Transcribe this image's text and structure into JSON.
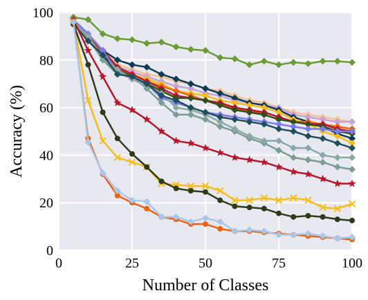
{
  "chart_data": {
    "type": "line",
    "xlabel": "Number of Classes",
    "ylabel": "Accuracy (%)",
    "xlim": [
      0,
      100
    ],
    "ylim": [
      0,
      100
    ],
    "xticks": [
      0,
      25,
      50,
      75,
      100
    ],
    "yticks": [
      0,
      20,
      40,
      60,
      80,
      100
    ],
    "grid": true,
    "plot_background": "#e8e8f0",
    "grid_color": "#ffffff",
    "x": [
      5,
      10,
      15,
      20,
      25,
      30,
      35,
      40,
      45,
      50,
      55,
      60,
      65,
      70,
      75,
      80,
      85,
      90,
      95,
      100
    ],
    "series": [
      {
        "color": "#6b9b37",
        "marker": "diamond",
        "values": [
          98,
          97,
          91,
          89,
          88.5,
          87,
          87.5,
          85.5,
          84.5,
          84,
          81,
          80.5,
          78,
          79.5,
          78,
          79,
          78.5,
          79.5,
          79.5,
          79
        ]
      },
      {
        "color": "#f4c28e",
        "marker": "diamond",
        "values": [
          97,
          90,
          84,
          78,
          76,
          74,
          73,
          71,
          70,
          68,
          67,
          65,
          63,
          62,
          60,
          58,
          57,
          56,
          55,
          54
        ]
      },
      {
        "color": "#c4a3d9",
        "marker": "diamond",
        "values": [
          97,
          90,
          83,
          77,
          75,
          73,
          71,
          69,
          68,
          66,
          65,
          63,
          62,
          61,
          60,
          57,
          56,
          55,
          54,
          54
        ]
      },
      {
        "color": "#0d3b57",
        "marker": "diamond",
        "values": [
          96,
          89,
          84,
          80,
          78,
          77,
          74,
          72,
          70,
          68,
          66,
          64,
          62,
          61,
          59,
          56,
          54,
          52,
          49,
          47
        ]
      },
      {
        "color": "#f5be1a",
        "marker": "diamond",
        "values": [
          96,
          88,
          82,
          76,
          74,
          72,
          70,
          67,
          66,
          65,
          63,
          62,
          61,
          60,
          58,
          55,
          53,
          50,
          48,
          45
        ]
      },
      {
        "color": "#ec6313",
        "marker": "diamond",
        "values": [
          96,
          89,
          83,
          76,
          74,
          71,
          69,
          67,
          65,
          63,
          61,
          60,
          58,
          58,
          56,
          54,
          54,
          53,
          52,
          51
        ]
      },
      {
        "color": "#b5182d",
        "marker": "diamond",
        "values": [
          97,
          90,
          84,
          77,
          74,
          71,
          68,
          65,
          64,
          63,
          62,
          60,
          59,
          58,
          56,
          54,
          53,
          53,
          51,
          50
        ]
      },
      {
        "color": "#344e1b",
        "marker": "diamond",
        "values": [
          96,
          89,
          82,
          76,
          73,
          70,
          67,
          64,
          64,
          63,
          61,
          59,
          58,
          57,
          55,
          54,
          53,
          52,
          50,
          49
        ]
      },
      {
        "color": "#7a7cee",
        "marker": "diamond",
        "values": [
          97,
          91,
          84,
          75,
          72,
          70,
          64,
          62,
          60,
          58,
          57,
          56,
          55,
          54,
          53,
          52,
          51,
          51,
          50,
          50
        ]
      },
      {
        "color": "#7e9c96",
        "marker": "diamond",
        "values": [
          96,
          89,
          80,
          74,
          73,
          68,
          62,
          57,
          57,
          55,
          52,
          50,
          47,
          45,
          42,
          39,
          38,
          37,
          35,
          34
        ]
      },
      {
        "color": "#8ba9a3",
        "marker": "diamond",
        "values": [
          96,
          90,
          81,
          76,
          72,
          69,
          66,
          60,
          59,
          57,
          54,
          51,
          48,
          46,
          46,
          43,
          43,
          40,
          39,
          39
        ]
      },
      {
        "color": "#1e4f5b",
        "marker": "diamond",
        "values": [
          95,
          88,
          82,
          74,
          73,
          70,
          65,
          63,
          60,
          58,
          56,
          55,
          54,
          53,
          51,
          50,
          48,
          47,
          45,
          43
        ]
      },
      {
        "color": "#b5182d",
        "marker": "star",
        "values": [
          97,
          84,
          73,
          62,
          59,
          55,
          50,
          46,
          45,
          43,
          41,
          39,
          38,
          37,
          35,
          33,
          32,
          30,
          28,
          28
        ]
      },
      {
        "color": "#f5be1a",
        "marker": "x",
        "values": [
          96,
          63,
          46,
          39,
          37,
          35,
          28,
          27.5,
          27,
          27,
          25,
          21,
          21,
          22,
          21,
          22,
          21,
          18,
          17.5,
          19.5
        ]
      },
      {
        "color": "#2d3a19",
        "marker": "circle",
        "values": [
          95,
          78,
          58,
          47,
          40.5,
          35,
          29,
          26,
          25,
          24.5,
          21,
          18.5,
          18,
          17.5,
          15.5,
          14,
          14.5,
          14,
          13,
          12.5
        ]
      },
      {
        "color": "#ec6313",
        "marker": "circle",
        "values": [
          96,
          47,
          32,
          23,
          20,
          17.5,
          14,
          13,
          11,
          11,
          9,
          8,
          8,
          7.5,
          7,
          6.5,
          6,
          5.5,
          5,
          4.5
        ]
      },
      {
        "color": "#a7c8ec",
        "marker": "diamond",
        "values": [
          96,
          45.5,
          32.5,
          25,
          21,
          20.5,
          14,
          14,
          12,
          13.5,
          12,
          8,
          8.5,
          8,
          6.5,
          6.5,
          7,
          6,
          5,
          5.5
        ]
      }
    ]
  }
}
